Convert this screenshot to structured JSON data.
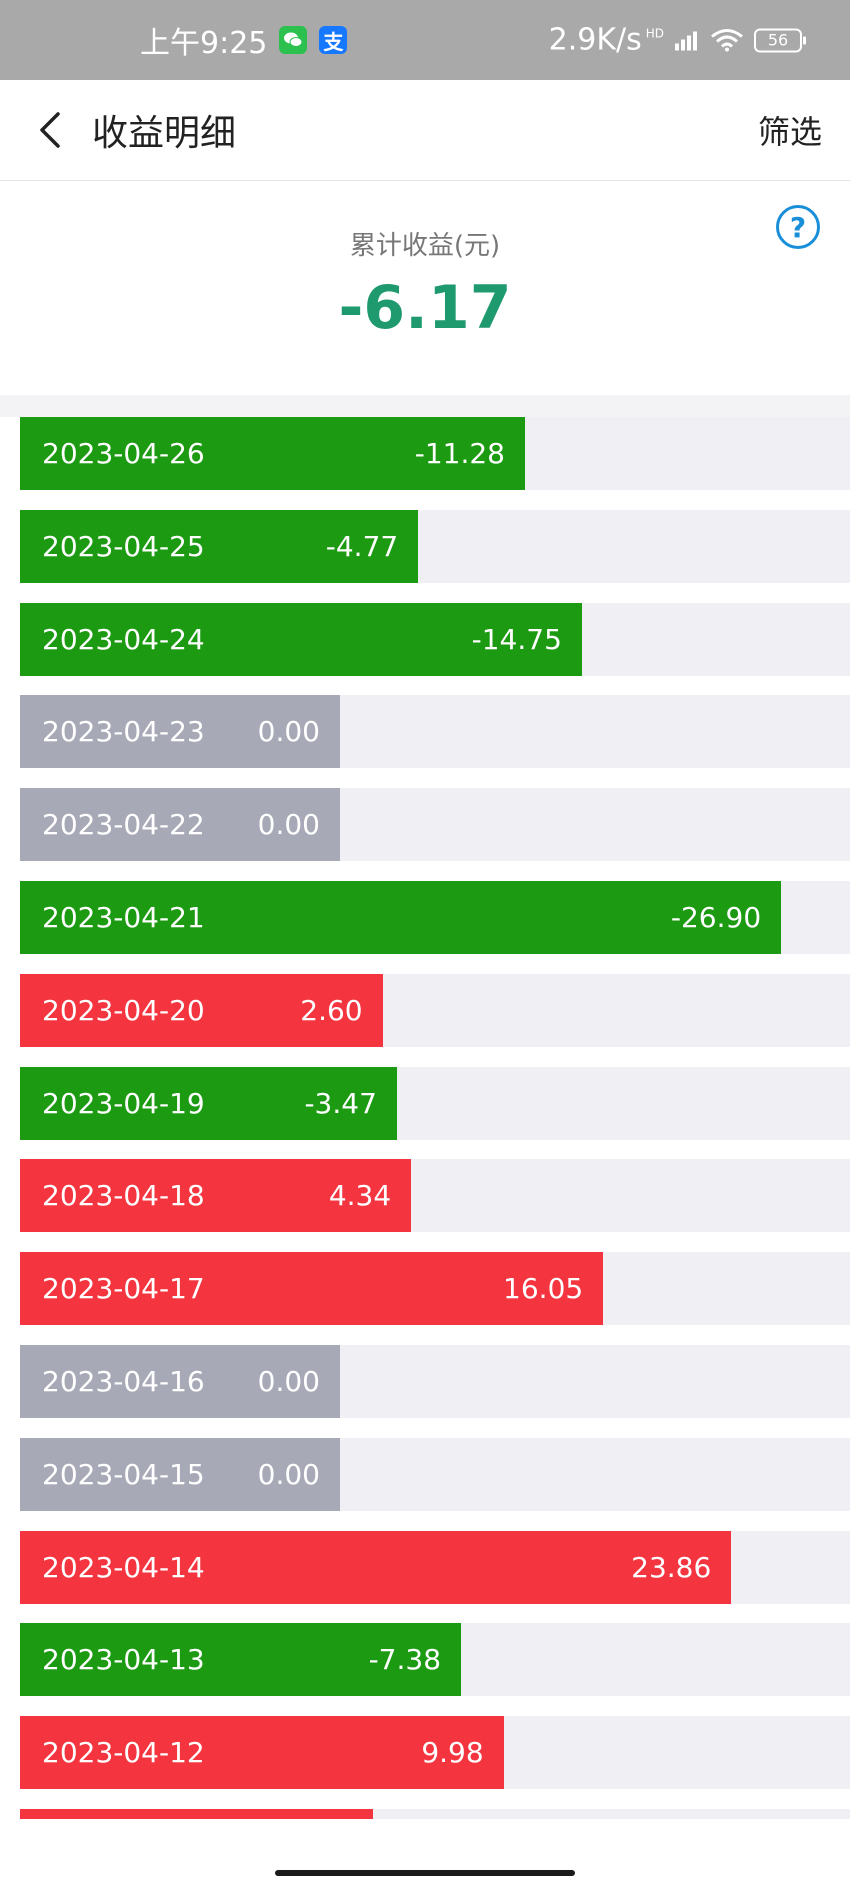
{
  "status_bar": {
    "time": "上午9:25",
    "network_speed": "2.9K/s",
    "hd_label": "HD",
    "battery": "56",
    "wechat_icon_color": "#2cc14f",
    "alipay_icon_color": "#1677ff",
    "alipay_glyph": "支"
  },
  "header": {
    "title": "收益明细",
    "filter_label": "筛选"
  },
  "summary": {
    "label": "累计收益(元)",
    "value": "-6.17",
    "help_glyph": "?"
  },
  "colors": {
    "negative": "#1b9a12",
    "positive": "#f4343f",
    "zero": "#a7a9b6",
    "track": "#efeff4",
    "total": "#1f9a6e"
  },
  "rows": [
    {
      "date": "2023-04-26",
      "amount": "-11.28",
      "value": -11.28
    },
    {
      "date": "2023-04-25",
      "amount": "-4.77",
      "value": -4.77
    },
    {
      "date": "2023-04-24",
      "amount": "-14.75",
      "value": -14.75
    },
    {
      "date": "2023-04-23",
      "amount": "0.00",
      "value": 0
    },
    {
      "date": "2023-04-22",
      "amount": "0.00",
      "value": 0
    },
    {
      "date": "2023-04-21",
      "amount": "-26.90",
      "value": -26.9
    },
    {
      "date": "2023-04-20",
      "amount": "2.60",
      "value": 2.6
    },
    {
      "date": "2023-04-19",
      "amount": "-3.47",
      "value": -3.47
    },
    {
      "date": "2023-04-18",
      "amount": "4.34",
      "value": 4.34
    },
    {
      "date": "2023-04-17",
      "amount": "16.05",
      "value": 16.05
    },
    {
      "date": "2023-04-16",
      "amount": "0.00",
      "value": 0
    },
    {
      "date": "2023-04-15",
      "amount": "0.00",
      "value": 0
    },
    {
      "date": "2023-04-14",
      "amount": "23.86",
      "value": 23.86
    },
    {
      "date": "2023-04-13",
      "amount": "-7.38",
      "value": -7.38
    },
    {
      "date": "2023-04-12",
      "amount": "9.98",
      "value": 9.98
    },
    {
      "date": "",
      "amount": "",
      "value": 2.0
    }
  ]
}
